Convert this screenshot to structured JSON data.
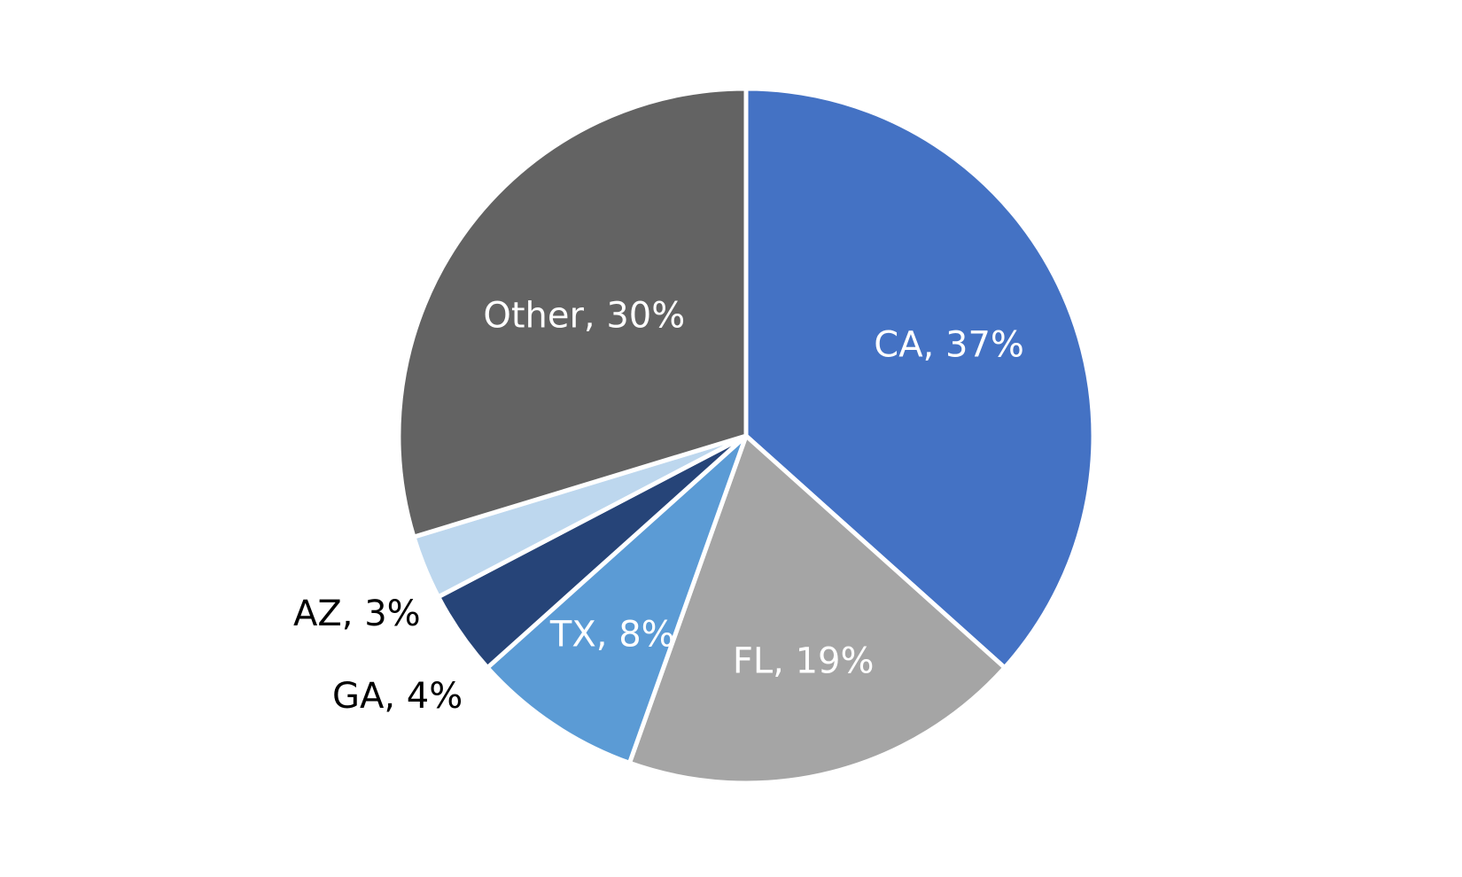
{
  "chart_data": {
    "type": "pie",
    "title": "",
    "start_angle_deg": 0,
    "direction": "clockwise",
    "slice_border_color": "#ffffff",
    "slices": [
      {
        "label": "CA",
        "value": 37,
        "display": "CA, 37%",
        "color": "#4472C4",
        "label_color": "#FFFFFF"
      },
      {
        "label": "FL",
        "value": 19,
        "display": "FL, 19%",
        "color": "#A5A5A5",
        "label_color": "#FFFFFF"
      },
      {
        "label": "TX",
        "value": 8,
        "display": "TX, 8%",
        "color": "#5B9BD5",
        "label_color": "#FFFFFF"
      },
      {
        "label": "GA",
        "value": 4,
        "display": "GA, 4%",
        "color": "#264478",
        "label_color": "#000000"
      },
      {
        "label": "AZ",
        "value": 3,
        "display": "AZ, 3%",
        "color": "#BDD7EE",
        "label_color": "#000000"
      },
      {
        "label": "Other",
        "value": 30,
        "display": "Other, 30%",
        "color": "#636363",
        "label_color": "#FFFFFF"
      }
    ]
  }
}
